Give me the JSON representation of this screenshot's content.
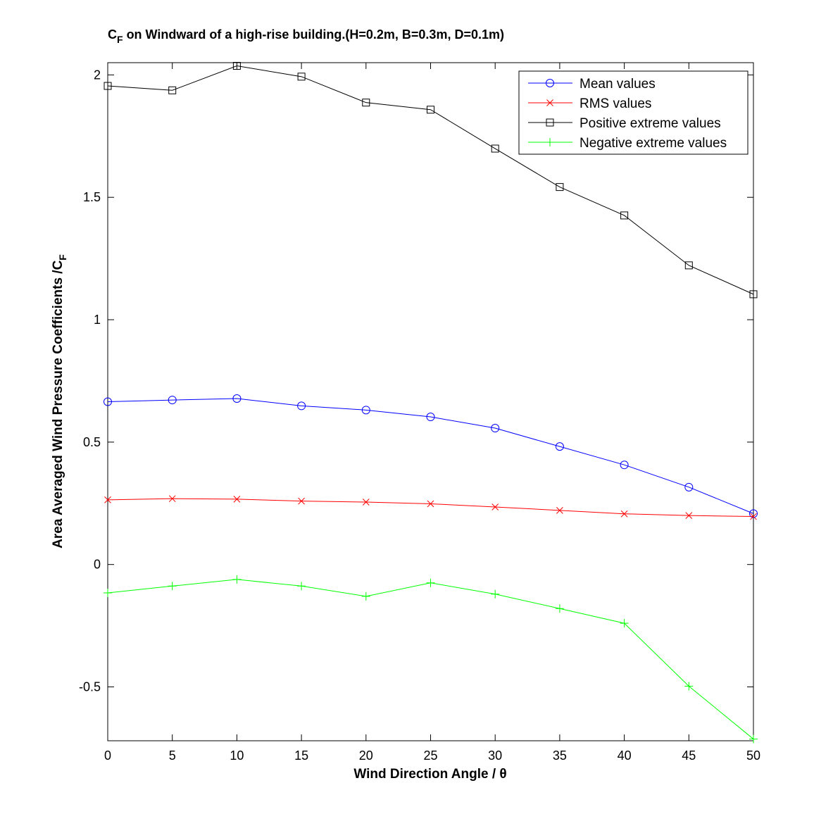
{
  "chart_data": {
    "type": "line",
    "title_main": "C",
    "title_sub": "F",
    "title_rest": " on Windward of a high-rise building.(H=0.2m, B=0.3m, D=0.1m)",
    "xlabel": "Wind Direction Angle  / θ",
    "ylabel_main": "Area Averaged Wind Pressure Coefficients /C",
    "ylabel_sub": "F",
    "xlim": [
      0,
      50
    ],
    "ylim": [
      -0.72,
      2.05
    ],
    "xticks": [
      0,
      5,
      10,
      15,
      20,
      25,
      30,
      35,
      40,
      45,
      50
    ],
    "yticks": [
      -0.5,
      0,
      0.5,
      1,
      1.5,
      2
    ],
    "ytick_labels": [
      "-0.5",
      "0",
      "0.5",
      "1",
      "1.5",
      "2"
    ],
    "grid": false,
    "legend_position": "top-right",
    "x": [
      0,
      5,
      10,
      15,
      20,
      25,
      30,
      35,
      40,
      45,
      50
    ],
    "series": [
      {
        "name": "Mean values",
        "color": "#0000ff",
        "marker": "circle",
        "values": [
          0.665,
          0.672,
          0.678,
          0.648,
          0.631,
          0.603,
          0.557,
          0.482,
          0.407,
          0.316,
          0.208
        ]
      },
      {
        "name": "RMS values",
        "color": "#ff0000",
        "marker": "x",
        "values": [
          0.264,
          0.269,
          0.267,
          0.259,
          0.255,
          0.248,
          0.235,
          0.221,
          0.207,
          0.2,
          0.196
        ]
      },
      {
        "name": "Positive extreme values",
        "color": "#000000",
        "marker": "square",
        "values": [
          1.955,
          1.937,
          2.037,
          1.993,
          1.887,
          1.858,
          1.699,
          1.542,
          1.426,
          1.222,
          1.104
        ]
      },
      {
        "name": "Negative extreme values",
        "color": "#00ff00",
        "marker": "plus",
        "values": [
          -0.116,
          -0.088,
          -0.061,
          -0.088,
          -0.13,
          -0.075,
          -0.121,
          -0.18,
          -0.24,
          -0.497,
          -0.713
        ]
      }
    ]
  }
}
